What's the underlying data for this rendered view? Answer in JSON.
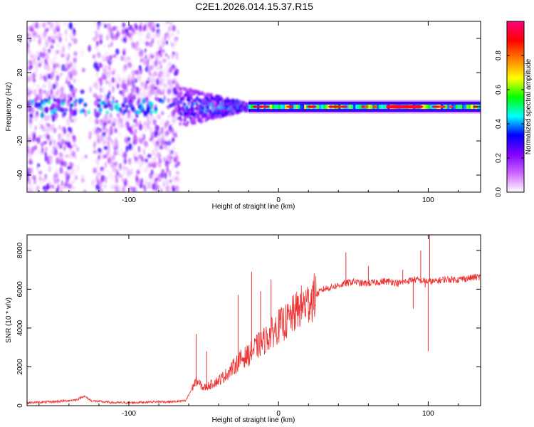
{
  "title": "C2E1.2026.014.15.37.R15",
  "chart_data": [
    {
      "type": "heatmap",
      "name": "spectrogram",
      "xlabel": "Height of straight line (km)",
      "ylabel": "Frequency (Hz)",
      "xlim": [
        -168,
        135
      ],
      "ylim": [
        -50,
        50
      ],
      "xticks": [
        -100,
        0,
        100
      ],
      "yticks": [
        -40,
        -20,
        0,
        20,
        40
      ],
      "colorbar": {
        "label": "Normalized spectral amplitude",
        "range": [
          0,
          1
        ],
        "ticks": [
          0.0,
          0.2,
          0.4,
          0.6,
          0.8
        ],
        "stops": [
          "#ffffff",
          "#cc66ff",
          "#8000ff",
          "#0000ff",
          "#00ffff",
          "#00ff00",
          "#ffff00",
          "#ff8000",
          "#ff0000",
          "#ff0080"
        ]
      },
      "features": [
        {
          "label": "diffuse speckle",
          "x_range": [
            -168,
            -67
          ],
          "freq_range": [
            -50,
            50
          ],
          "amplitude": 0.15
        },
        {
          "label": "transition",
          "x_range": [
            -67,
            -20
          ],
          "freq_range": [
            -10,
            10
          ],
          "amplitude": 0.35
        },
        {
          "label": "narrow band",
          "x_range": [
            -20,
            135
          ],
          "freq_range": [
            -2,
            2
          ],
          "amplitude": 0.75
        }
      ]
    },
    {
      "type": "line",
      "name": "snr",
      "xlabel": "Height of straight line (km)",
      "ylabel": "SNR (10 * v/v)",
      "xlim": [
        -168,
        135
      ],
      "ylim": [
        0,
        8800
      ],
      "xticks": [
        -100,
        0,
        100
      ],
      "yticks": [
        0,
        2000,
        4000,
        6000,
        8000
      ],
      "color": "#ee3333",
      "series": [
        {
          "name": "SNR",
          "x": [
            -168,
            -150,
            -135,
            -130,
            -125,
            -110,
            -100,
            -90,
            -80,
            -70,
            -62,
            -55,
            -50,
            -45,
            -40,
            -35,
            -30,
            -25,
            -20,
            -15,
            -10,
            -5,
            0,
            5,
            10,
            15,
            20,
            25,
            30,
            35,
            40,
            45,
            50,
            55,
            60,
            65,
            70,
            75,
            80,
            85,
            90,
            95,
            100,
            105,
            110,
            115,
            120,
            125,
            130,
            135
          ],
          "y": [
            150,
            200,
            300,
            500,
            250,
            150,
            150,
            180,
            200,
            200,
            250,
            1300,
            900,
            1100,
            1300,
            1600,
            2000,
            2400,
            2600,
            3000,
            3300,
            3700,
            4100,
            4300,
            4700,
            5100,
            5300,
            5700,
            6000,
            6100,
            6200,
            6300,
            6400,
            6300,
            6300,
            6350,
            6400,
            6400,
            6300,
            6400,
            6500,
            6450,
            6400,
            6400,
            6500,
            6500,
            6500,
            6550,
            6600,
            6650
          ]
        },
        {
          "name": "Spikes",
          "x": [
            -55,
            -48,
            -27,
            -18,
            -12,
            -5,
            20,
            45,
            60,
            83,
            95,
            100,
            101,
            98,
            90
          ],
          "y": [
            3700,
            2800,
            5700,
            6900,
            5900,
            6500,
            6000,
            7900,
            7200,
            7000,
            8000,
            2800,
            8800,
            6100,
            5000
          ]
        }
      ]
    }
  ]
}
